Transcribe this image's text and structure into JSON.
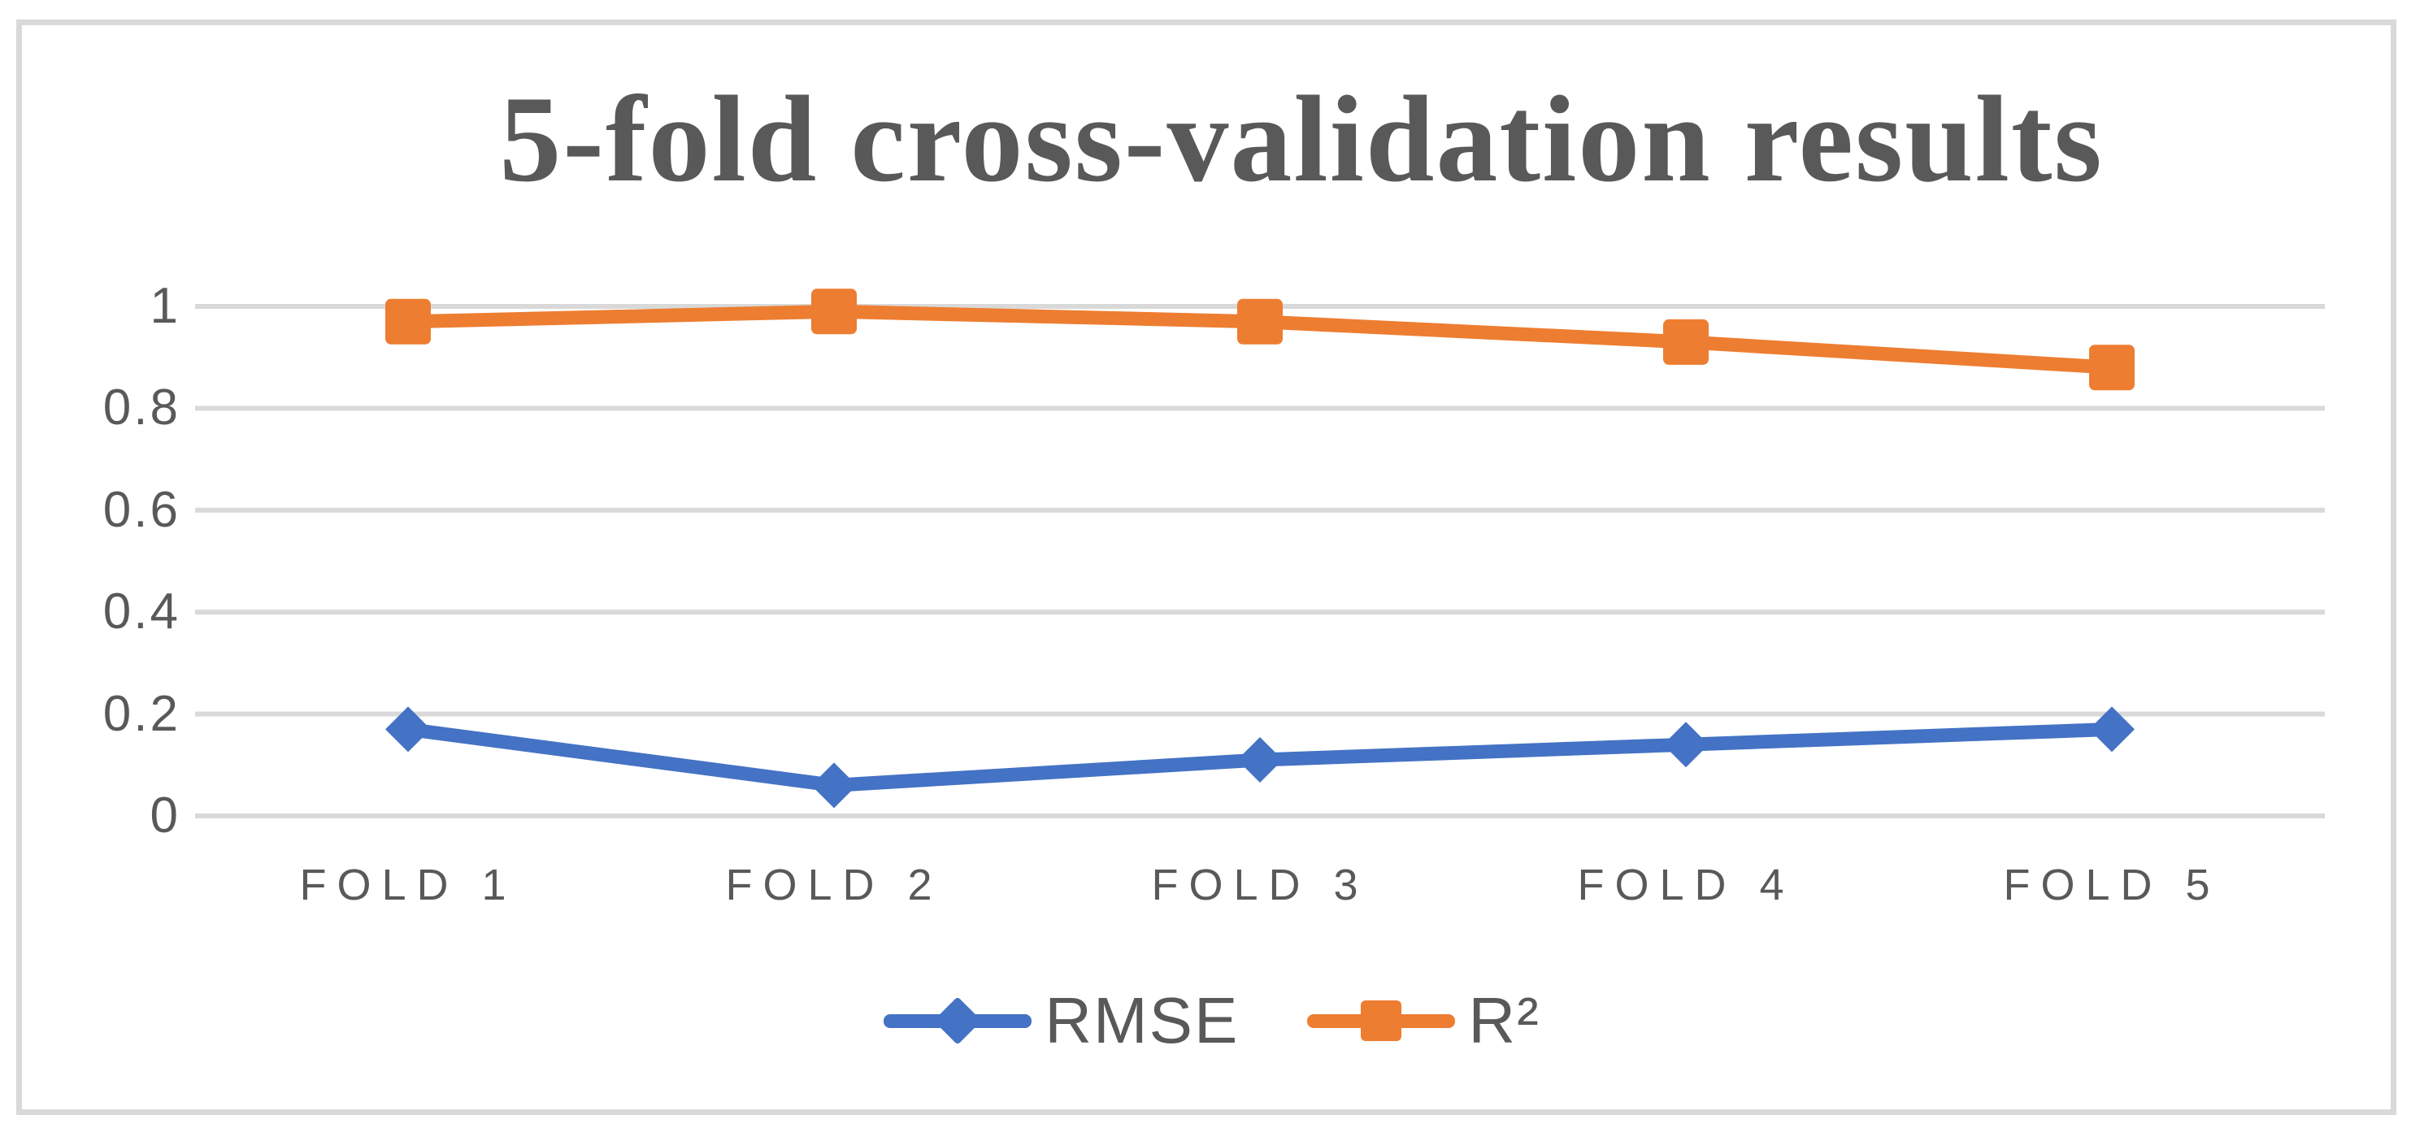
{
  "chart_data": {
    "type": "line",
    "title": "5-fold cross-validation results",
    "categories": [
      "FOLD 1",
      "FOLD 2",
      "FOLD 3",
      "FOLD 4",
      "FOLD 5"
    ],
    "series": [
      {
        "name": "RMSE",
        "values": [
          0.17,
          0.06,
          0.11,
          0.14,
          0.17
        ],
        "color": "#4472C4",
        "marker": "diamond"
      },
      {
        "name": "R²",
        "values": [
          0.97,
          0.99,
          0.97,
          0.93,
          0.88
        ],
        "color": "#ED7D31",
        "marker": "square"
      }
    ],
    "xlabel": "",
    "ylabel": "",
    "ylim": [
      0,
      1
    ],
    "y_ticks": [
      {
        "label": "1",
        "value": 1.0
      },
      {
        "label": "0.8",
        "value": 0.8
      },
      {
        "label": "0.6",
        "value": 0.6
      },
      {
        "label": "0.4",
        "value": 0.4
      },
      {
        "label": "0.2",
        "value": 0.2
      },
      {
        "label": "0",
        "value": 0.0
      }
    ],
    "grid": true,
    "legend_position": "bottom",
    "styles": {
      "grid_color": "#D9D9D9",
      "frame_border_color": "#D9D9D9",
      "text_color": "#595959",
      "title_color": "#595959",
      "background": "#FFFFFF"
    }
  }
}
